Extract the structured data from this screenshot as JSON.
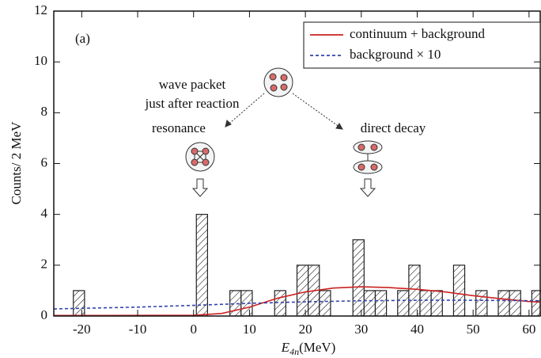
{
  "chart_data": {
    "type": "histogram",
    "panel_label": "(a)",
    "ylabel": "Counts/ 2 MeV",
    "xlabel": "E",
    "xlabel_sub": "4n",
    "xlabel_unit": "(MeV)",
    "bins": [
      -21.5,
      -19.5,
      -17.5,
      -15.5,
      -13.5,
      -11.5,
      -9.5,
      -7.5,
      -5.5,
      -3.5,
      -1.5,
      0.5,
      2.5,
      4.5,
      6.5,
      8.5,
      10.5,
      12.5,
      14.5,
      16.5,
      18.5,
      20.5,
      22.5,
      24.5,
      26.5,
      28.5,
      30.5,
      32.5,
      34.5,
      36.5,
      38.5,
      40.5,
      42.5,
      44.5,
      46.5,
      48.5,
      50.5,
      52.5,
      54.5,
      56.5,
      58.5,
      60.5,
      62.5
    ],
    "counts": [
      1,
      0,
      0,
      0,
      0,
      0,
      0,
      0,
      0,
      0,
      0,
      4,
      0,
      0,
      1,
      1,
      0,
      0,
      1,
      0,
      2,
      2,
      1,
      0,
      0,
      3,
      1,
      1,
      0,
      1,
      2,
      1,
      1,
      0,
      2,
      0,
      1,
      0,
      1,
      1,
      0,
      1
    ],
    "color": "#ffffff",
    "series": [
      {
        "name": "continuum + background",
        "color": "#cc2222",
        "dash": false,
        "x": [
          -25,
          0,
          5,
          10,
          15,
          20,
          25,
          30,
          35,
          40,
          45,
          50,
          55,
          60,
          62
        ],
        "values": [
          0.02,
          0.03,
          0.1,
          0.35,
          0.7,
          0.95,
          1.1,
          1.15,
          1.12,
          1.05,
          0.95,
          0.8,
          0.68,
          0.57,
          0.55
        ]
      },
      {
        "name": "background × 10",
        "color": "#3344aa",
        "dash": true,
        "x": [
          -25,
          -10,
          0,
          10,
          20,
          30,
          40,
          50,
          62
        ],
        "values": [
          0.28,
          0.35,
          0.42,
          0.5,
          0.56,
          0.6,
          0.62,
          0.62,
          0.6
        ]
      }
    ],
    "xlim": [
      -25,
      62
    ],
    "ylim": [
      0,
      12
    ],
    "xticks": [
      -20,
      -10,
      0,
      10,
      20,
      30,
      40,
      50,
      60
    ],
    "yticks": [
      0,
      2,
      4,
      6,
      8,
      10,
      12
    ],
    "legend": "upper right",
    "annotations": {
      "wave_packet_1": "wave packet",
      "wave_packet_2": "just after reaction",
      "resonance": "resonance",
      "direct_decay": "direct decay"
    }
  }
}
